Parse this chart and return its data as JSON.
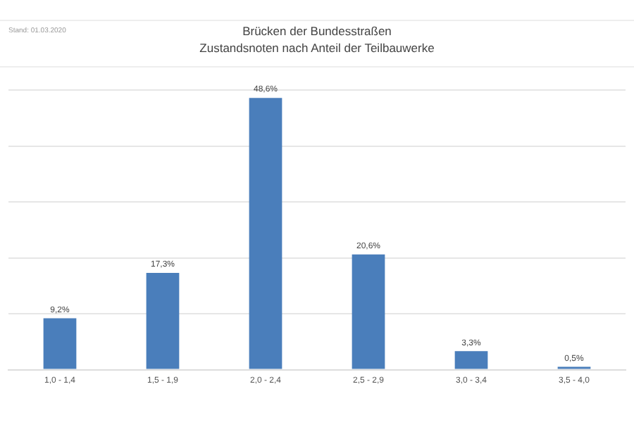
{
  "chart_data": {
    "type": "bar",
    "title": "Brücken der Bundesstraßen",
    "subtitle": "Zustandsnoten nach Anteil der Teilbauwerke",
    "annotations": [
      "Stand: 01.03.2020"
    ],
    "categories": [
      "1,0 - 1,4",
      "1,5 - 1,9",
      "2,0 - 2,4",
      "2,5 - 2,9",
      "3,0 - 3,4",
      "3,5 - 4,0"
    ],
    "values": [
      9.2,
      17.3,
      48.6,
      20.6,
      3.3,
      0.5
    ],
    "value_labels": [
      "9,2%",
      "17,3%",
      "48,6%",
      "20,6%",
      "3,3%",
      "0,5%"
    ],
    "color": "#4a7ebb",
    "ylim": [
      0,
      50
    ],
    "yticks": [
      {
        "value": 0,
        "label": null
      },
      {
        "value": 10,
        "label": null
      },
      {
        "value": 20,
        "label": null
      },
      {
        "value": 30,
        "label": null
      },
      {
        "value": 40,
        "label": null
      },
      {
        "value": 50,
        "label": null
      }
    ],
    "tick_labels": "x",
    "grid": "y",
    "legend": false
  }
}
